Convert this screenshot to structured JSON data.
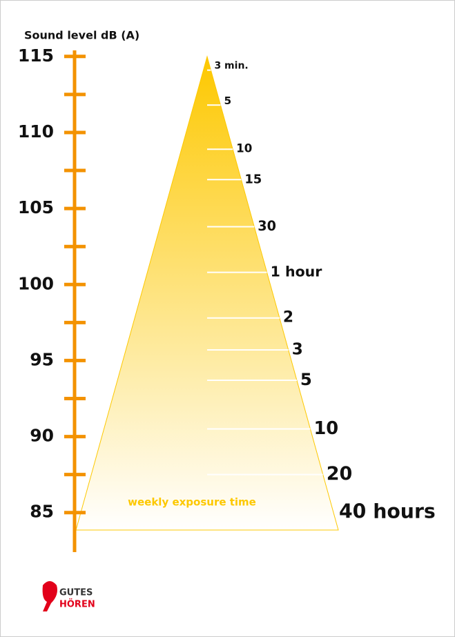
{
  "chart_data": {
    "type": "exposure-triangle",
    "title": "Sound level dB (A)",
    "ylim": [
      82.4,
      115.4
    ],
    "yticks": [
      85,
      90,
      95,
      100,
      105,
      110,
      115
    ],
    "minor_yticks": [
      87.5,
      92.5,
      97.5,
      102.5,
      107.5,
      112.5
    ],
    "categories": [
      "3 min.",
      "5",
      "10",
      "15",
      "30",
      "1 hour",
      "2",
      "3",
      "5",
      "10",
      "20",
      "40 hours"
    ],
    "values": [
      114.1,
      111.8,
      108.9,
      106.9,
      103.8,
      100.8,
      97.8,
      95.7,
      93.7,
      90.5,
      87.5,
      85
    ],
    "annotation": "weekly exposure time",
    "axis_color": "#f39200",
    "fill_color": "#fdc800",
    "logo": [
      "GUTES",
      "HÖREN"
    ]
  }
}
